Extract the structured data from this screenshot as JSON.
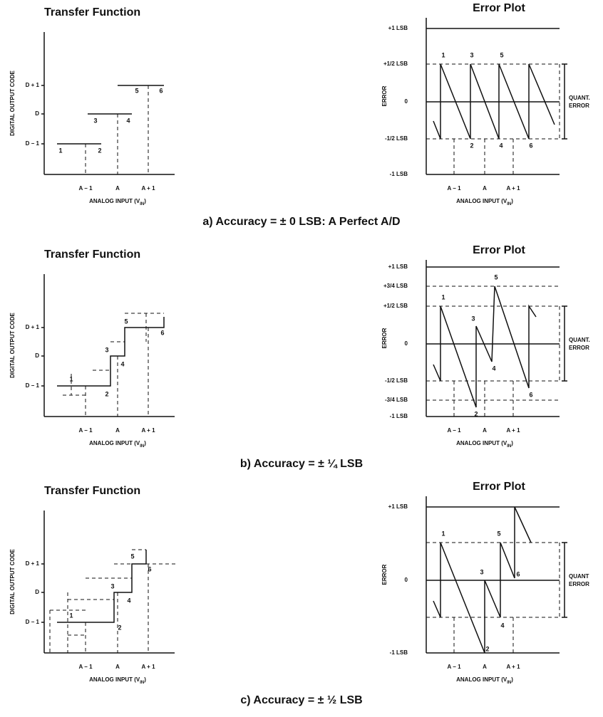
{
  "panels": [
    {
      "transfer_title": "Transfer Function",
      "transfer_y_label": "DIGITAL OUTPUT CODE",
      "transfer_y_ticks": [
        "D + 1",
        "D",
        "D − 1"
      ],
      "x_ticks": [
        "A − 1",
        "A",
        "A + 1"
      ],
      "x_label": [
        "ANALOG INPUT (V",
        "IN",
        ")"
      ],
      "transfer_points": [
        "1",
        "2",
        "3",
        "4",
        "5",
        "6"
      ],
      "error_title": "Error Plot",
      "error_y_label": "ERROR",
      "error_y_ticks": [
        "+1 LSB",
        "+1/2 LSB",
        "0",
        "-1/2 LSB",
        "-1 LSB"
      ],
      "error_points": [
        "1",
        "3",
        "5",
        "2",
        "4",
        "6"
      ],
      "quant_error": [
        "QUANT.",
        "ERROR"
      ],
      "caption": "a) Accuracy = ± 0 LSB: A Perfect A/D"
    },
    {
      "transfer_title": "Transfer Function",
      "transfer_y_label": "DIGITAL OUTPUT CODE",
      "transfer_y_ticks": [
        "D + 1",
        "D",
        "D − 1"
      ],
      "x_ticks": [
        "A − 1",
        "A",
        "A + 1"
      ],
      "x_label": [
        "ANALOG INPUT (V",
        "IN",
        ")"
      ],
      "transfer_points": [
        "1",
        "2",
        "3",
        "4",
        "5",
        "6"
      ],
      "error_title": "Error Plot",
      "error_y_label": "ERROR",
      "error_y_ticks": [
        "+1 LSB",
        "+3/4 LSB",
        "+1/2 LSB",
        "0",
        "-1/2 LSB",
        "-3/4 LSB",
        "-1 LSB"
      ],
      "error_points": [
        "1",
        "2",
        "3",
        "4",
        "5",
        "6"
      ],
      "quant_error": [
        "QUANT.",
        "ERROR"
      ],
      "caption": "b) Accuracy = ± ¼ LSB"
    },
    {
      "transfer_title": "Transfer Function",
      "transfer_y_label": "DIGITAL OUTPUT CODE",
      "transfer_y_ticks": [
        "D + 1",
        "D",
        "D − 1"
      ],
      "x_ticks": [
        "A − 1",
        "A",
        "A + 1"
      ],
      "x_label": [
        "ANALOG INPUT (V",
        "IN",
        ")"
      ],
      "transfer_points": [
        "1",
        "2",
        "3",
        "4",
        "5",
        "6"
      ],
      "error_title": "Error Plot",
      "error_y_label": "ERROR",
      "error_y_ticks": [
        "+1 LSB",
        "0",
        "-1 LSB"
      ],
      "error_points": [
        "1",
        "2",
        "3",
        "4",
        "5",
        "6"
      ],
      "quant_error": [
        "QUANT",
        "ERROR"
      ],
      "caption": "c) Accuracy = ± ½ LSB"
    }
  ]
}
